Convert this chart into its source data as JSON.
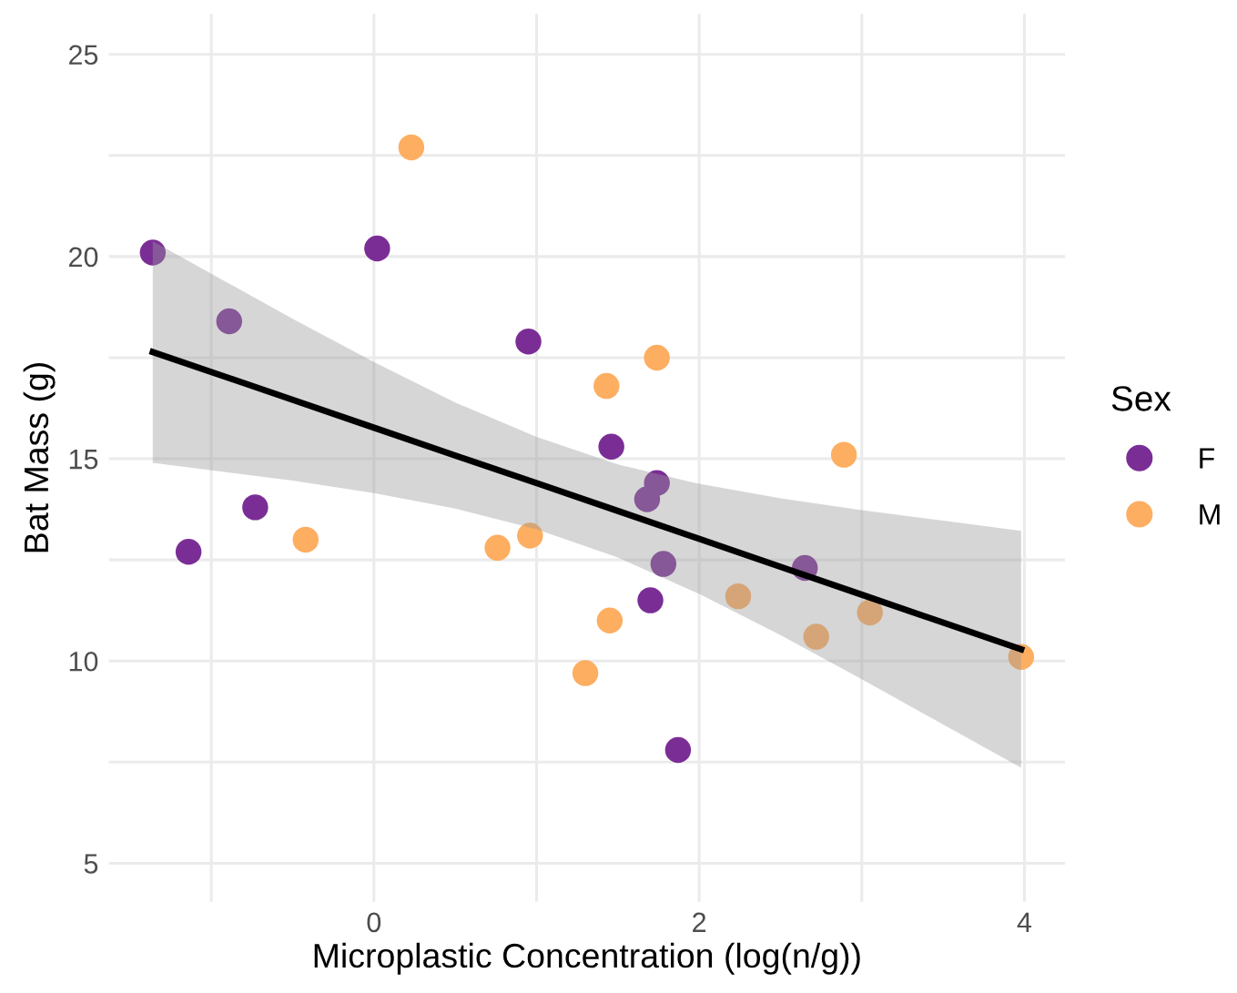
{
  "chart_data": {
    "type": "scatter",
    "xlabel": "Microplastic Concentration (log(n/g))",
    "ylabel": "Bat Mass (g)",
    "legend_title": "Sex",
    "legend": "right",
    "grid": true,
    "marker": "circle",
    "xlim": [
      -1.63,
      4.25
    ],
    "ylim": [
      4.05,
      26.0
    ],
    "xticks": [
      {
        "value": -1,
        "label": null
      },
      0,
      {
        "value": 1,
        "label": null
      },
      2,
      {
        "value": 3,
        "label": null
      },
      4
    ],
    "yticks": [
      5,
      {
        "value": 7.5,
        "label": null
      },
      10,
      {
        "value": 12.5,
        "label": null
      },
      15,
      {
        "value": 17.5,
        "label": null
      },
      20,
      {
        "value": 22.5,
        "label": null
      },
      25
    ],
    "series": [
      {
        "name": "F",
        "color": "#7b2d96",
        "x": [
          -1.36,
          -0.89,
          -1.14,
          -0.73,
          0.02,
          0.95,
          1.46,
          1.74,
          1.68,
          1.78,
          1.7,
          1.87,
          2.65
        ],
        "values": [
          20.1,
          18.4,
          12.7,
          13.8,
          20.2,
          17.9,
          15.3,
          14.4,
          14.0,
          12.4,
          11.5,
          7.8,
          12.3
        ]
      },
      {
        "name": "M",
        "color": "#fdae61",
        "x": [
          0.23,
          -0.42,
          0.76,
          0.96,
          1.43,
          1.74,
          1.45,
          1.3,
          2.24,
          2.72,
          2.89,
          3.05,
          3.98
        ],
        "values": [
          22.7,
          13.0,
          12.8,
          13.1,
          16.8,
          17.5,
          11.0,
          9.7,
          11.6,
          10.6,
          15.1,
          11.2,
          10.1
        ]
      },
      {
        "type": "line",
        "marker": "none",
        "color": "#000000",
        "x": [
          -1.36,
          -0.5,
          0,
          0.5,
          1,
          1.5,
          2,
          2.5,
          3,
          3.5,
          3.98
        ],
        "values": [
          17.64,
          16.46,
          15.77,
          15.08,
          14.4,
          13.71,
          13.02,
          12.33,
          11.64,
          10.95,
          10.29
        ],
        "lower": [
          14.9,
          14.46,
          14.15,
          13.77,
          13.26,
          12.56,
          11.66,
          10.64,
          9.55,
          8.43,
          7.36
        ],
        "upper": [
          20.38,
          18.46,
          17.39,
          16.39,
          15.54,
          14.86,
          14.38,
          14.02,
          13.73,
          13.47,
          13.22
        ]
      }
    ]
  }
}
